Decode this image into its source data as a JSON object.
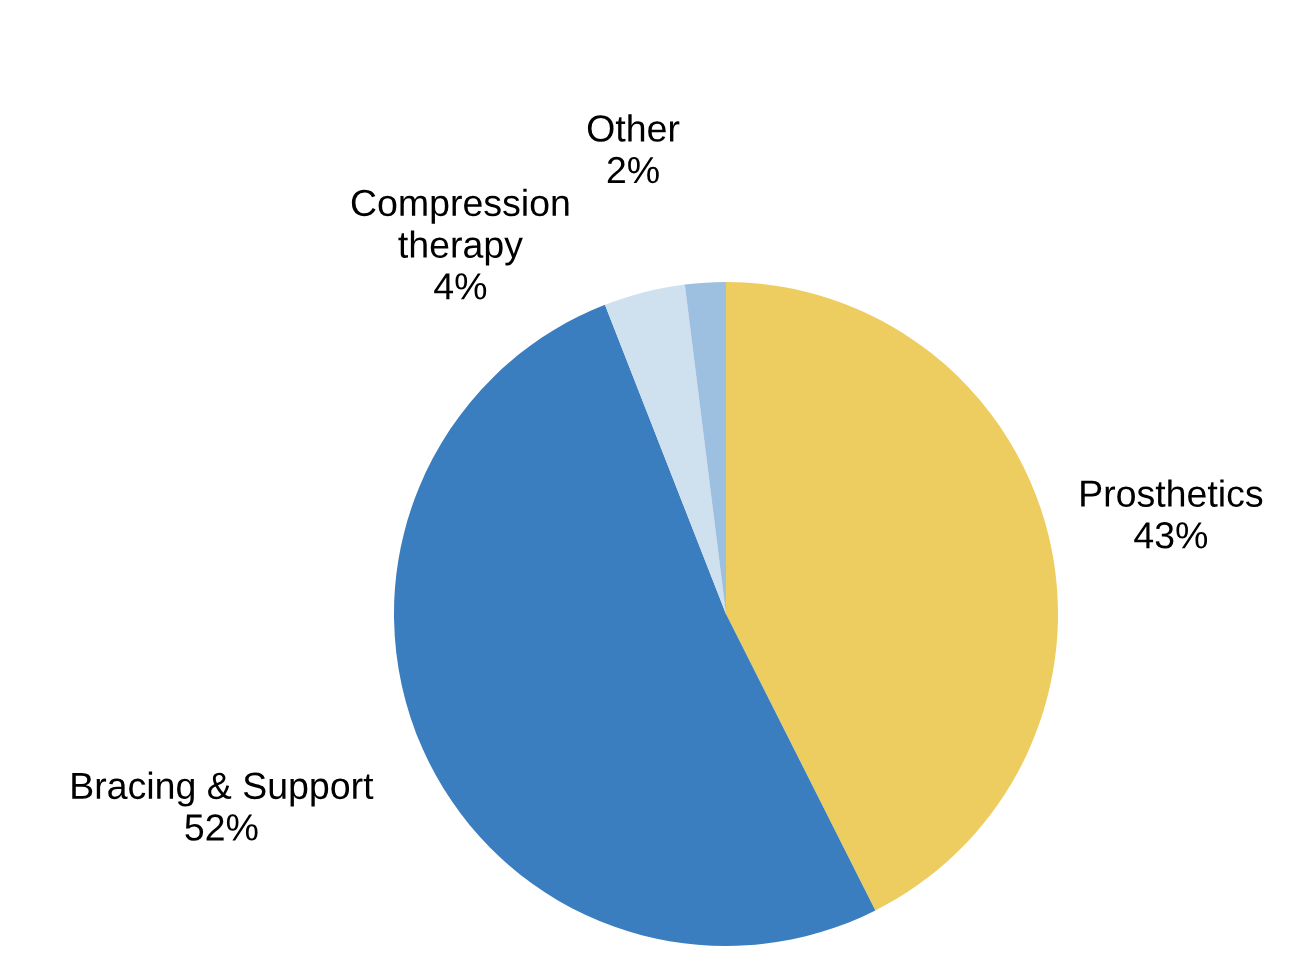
{
  "chart_data": {
    "type": "pie",
    "categories": [
      "Prosthetics",
      "Bracing & Support",
      "Compression therapy",
      "Other"
    ],
    "values": [
      43,
      52,
      4,
      2
    ],
    "colors": [
      "#edcd5f",
      "#3a7ebf",
      "#cfe0ee",
      "#9dbfe0"
    ],
    "value_labels": [
      "43%",
      "52%",
      "4%",
      "2%"
    ]
  }
}
